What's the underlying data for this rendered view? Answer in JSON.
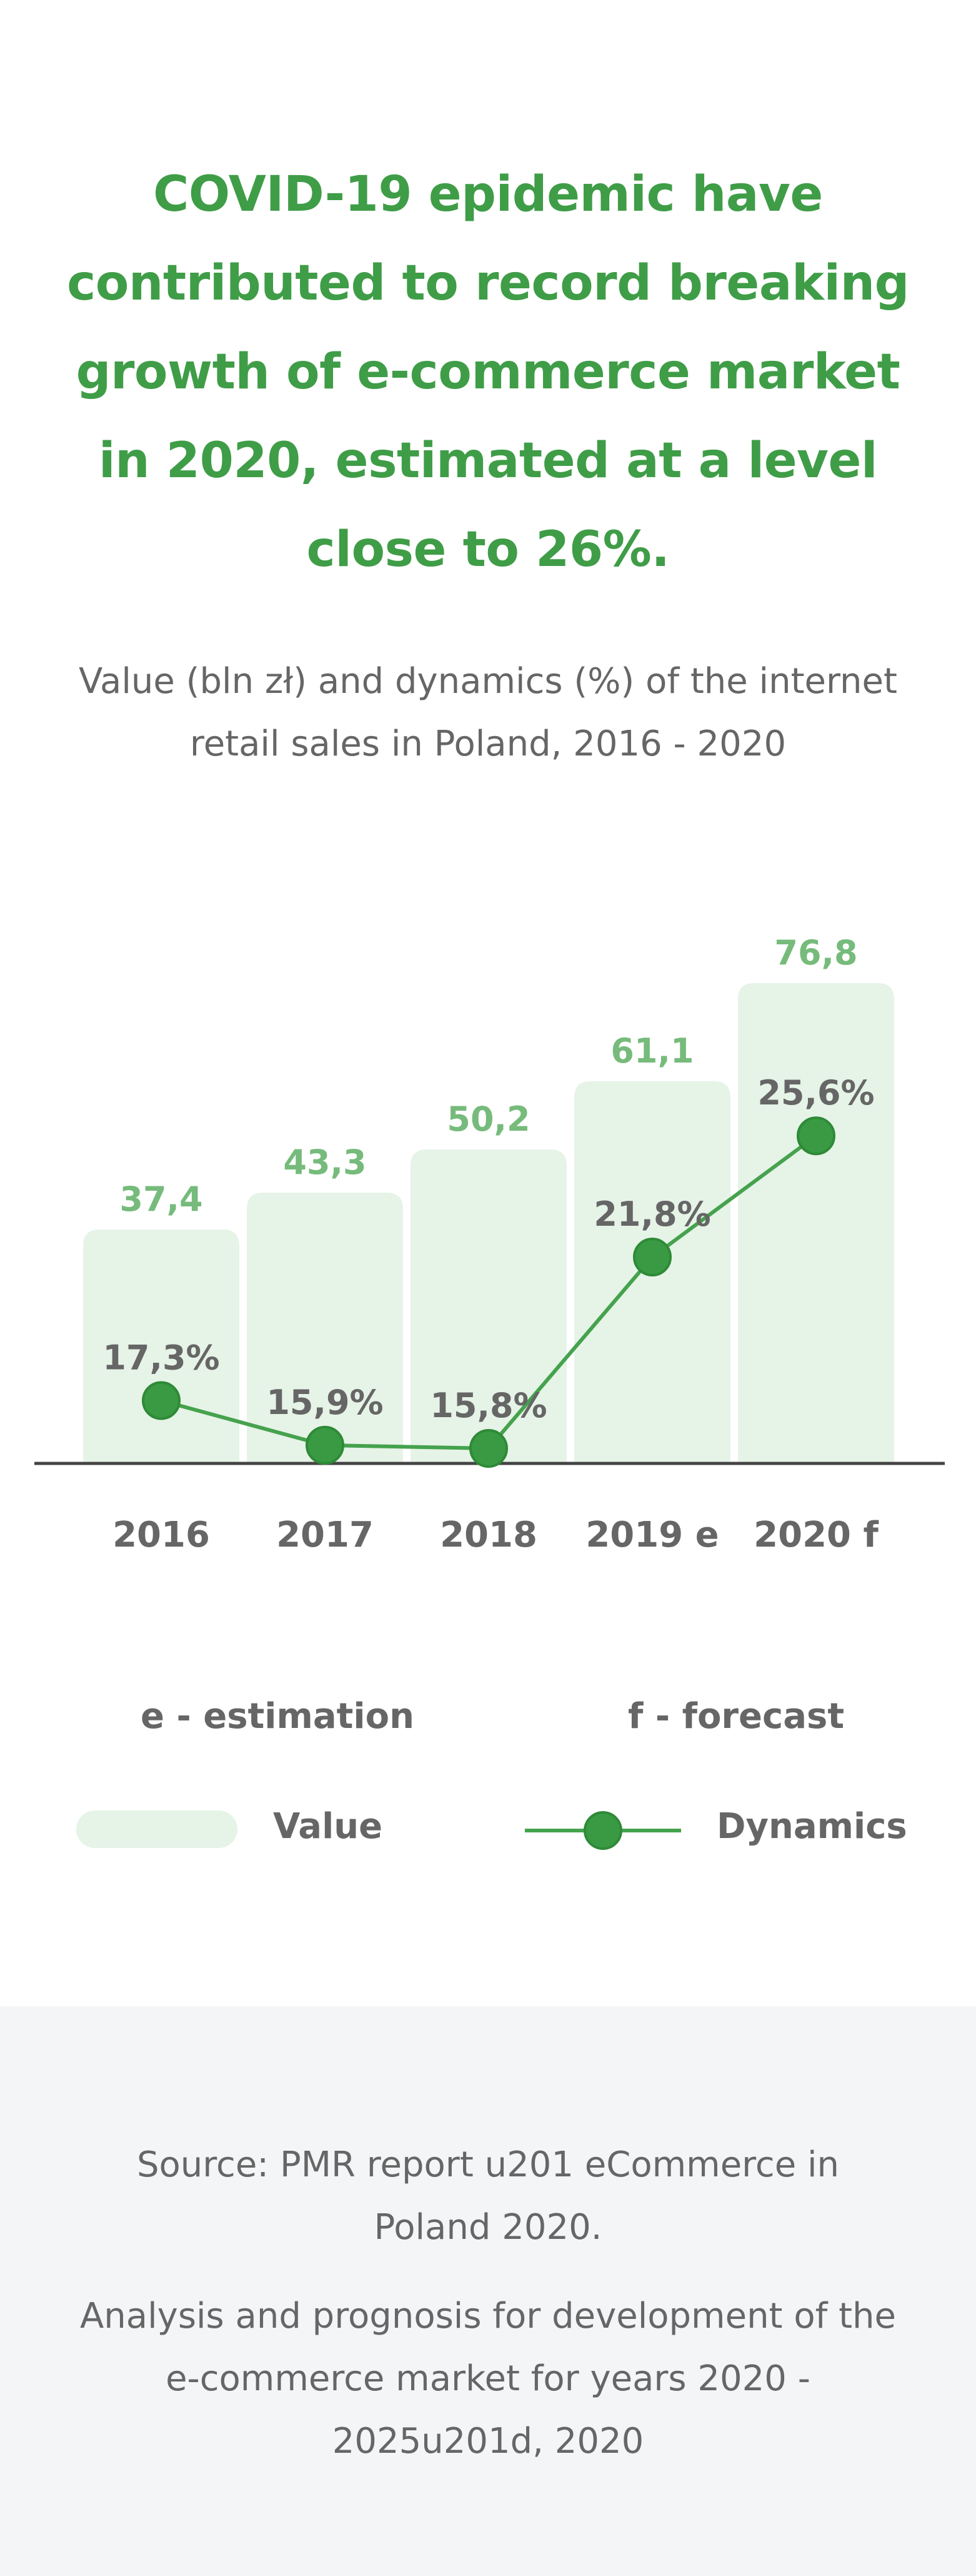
{
  "headline": "COVID-19 epidemic have contributed to record breaking growth of e-commerce market in 2020, estimated at a level close to 26%.",
  "subtitle": "Value (bln zł) and dynamics (%) of the internet retail sales in Poland, 2016 - 2020",
  "notes": {
    "estimation": "e - estimation",
    "forecast": "f - forecast"
  },
  "legend": {
    "value": "Value",
    "dynamics": "Dynamics"
  },
  "source": {
    "line1": "Source: PMR report u201 eCommerce in Poland 2020.",
    "line2": "Analysis and prognosis for development of the e-commerce market for years 2020 - 2025u201d, 2020"
  },
  "colors": {
    "headline": "#3f9d47",
    "bar_fill": "#e6f3e7",
    "value_label": "#76bb7b",
    "line": "#45a24d",
    "marker": "#3a9a43",
    "text": "#666666",
    "axis": "#444444",
    "footer_bg": "#f4f5f7"
  },
  "chart_data": {
    "type": "bar",
    "categories": [
      "2016",
      "2017",
      "2018",
      "2019 e",
      "2020 f"
    ],
    "series": [
      {
        "name": "Value",
        "type": "bar",
        "values": [
          37.4,
          43.3,
          50.2,
          61.1,
          76.8
        ],
        "labels": [
          "37,4",
          "43,3",
          "50,2",
          "61,1",
          "76,8"
        ]
      },
      {
        "name": "Dynamics",
        "type": "line",
        "values": [
          17.3,
          15.9,
          15.8,
          21.8,
          25.6
        ],
        "labels": [
          "17,3%",
          "15,9%",
          "15,8%",
          "21,8%",
          "25,6%"
        ]
      }
    ],
    "legend": "bottom",
    "grid": false
  }
}
